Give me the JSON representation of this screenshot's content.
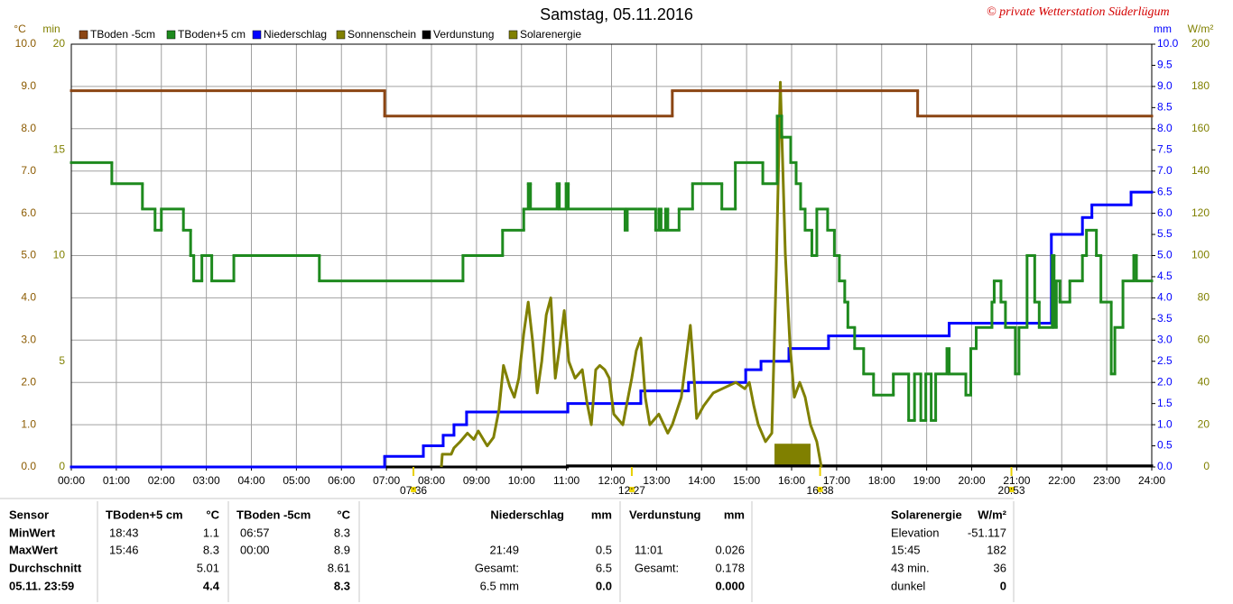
{
  "chart_data": {
    "type": "line",
    "title": "Samstag, 05.11.2016",
    "copyright": "© private Wetterstation Süderlügum",
    "grid": true,
    "xlim": [
      0,
      24
    ],
    "xticks": [
      {
        "value": 0,
        "label": "00:00"
      },
      {
        "value": 1,
        "label": "01:00"
      },
      {
        "value": 2,
        "label": "02:00"
      },
      {
        "value": 3,
        "label": "03:00"
      },
      {
        "value": 4,
        "label": "04:00"
      },
      {
        "value": 5,
        "label": "05:00"
      },
      {
        "value": 6,
        "label": "06:00"
      },
      {
        "value": 7,
        "label": "07:00"
      },
      {
        "value": 8,
        "label": "08:00"
      },
      {
        "value": 9,
        "label": "09:00"
      },
      {
        "value": 10,
        "label": "10:00"
      },
      {
        "value": 11,
        "label": "11:00"
      },
      {
        "value": 12,
        "label": "12:00"
      },
      {
        "value": 13,
        "label": "13:00"
      },
      {
        "value": 14,
        "label": "14:00"
      },
      {
        "value": 15,
        "label": "15:00"
      },
      {
        "value": 16,
        "label": "16:00"
      },
      {
        "value": 17,
        "label": "17:00"
      },
      {
        "value": 18,
        "label": "18:00"
      },
      {
        "value": 19,
        "label": "19:00"
      },
      {
        "value": 20,
        "label": "20:00"
      },
      {
        "value": 21,
        "label": "21:00"
      },
      {
        "value": 22,
        "label": "22:00"
      },
      {
        "value": 23,
        "label": "23:00"
      },
      {
        "value": 24,
        "label": "24:00"
      }
    ],
    "y_unit": "°C",
    "ylim": [
      0,
      10
    ],
    "yticks": [
      {
        "value": 0,
        "label": "0.0"
      },
      {
        "value": 1,
        "label": "1.0"
      },
      {
        "value": 2,
        "label": "2.0"
      },
      {
        "value": 3,
        "label": "3.0"
      },
      {
        "value": 4,
        "label": "4.0"
      },
      {
        "value": 5,
        "label": "5.0"
      },
      {
        "value": 6,
        "label": "6.0"
      },
      {
        "value": 7,
        "label": "7.0"
      },
      {
        "value": 8,
        "label": "8.0"
      },
      {
        "value": 9,
        "label": "9.0"
      },
      {
        "value": 10,
        "label": "10.0"
      }
    ],
    "y3_unit": "min",
    "y3lim": [
      0,
      20
    ],
    "y3ticks": [
      0,
      5,
      10,
      15,
      20
    ],
    "y2_unit": "mm",
    "y2lim": [
      0,
      10
    ],
    "y2ticks": [
      {
        "value": 0,
        "label": "0.0"
      },
      {
        "value": 0.5,
        "label": "0.5"
      },
      {
        "value": 1,
        "label": "1.0"
      },
      {
        "value": 1.5,
        "label": "1.5"
      },
      {
        "value": 2,
        "label": "2.0"
      },
      {
        "value": 2.5,
        "label": "2.5"
      },
      {
        "value": 3,
        "label": "3.0"
      },
      {
        "value": 3.5,
        "label": "3.5"
      },
      {
        "value": 4,
        "label": "4.0"
      },
      {
        "value": 4.5,
        "label": "4.5"
      },
      {
        "value": 5,
        "label": "5.0"
      },
      {
        "value": 5.5,
        "label": "5.5"
      },
      {
        "value": 6,
        "label": "6.0"
      },
      {
        "value": 6.5,
        "label": "6.5"
      },
      {
        "value": 7,
        "label": "7.0"
      },
      {
        "value": 7.5,
        "label": "7.5"
      },
      {
        "value": 8,
        "label": "8.0"
      },
      {
        "value": 8.5,
        "label": "8.5"
      },
      {
        "value": 9,
        "label": "9.0"
      },
      {
        "value": 9.5,
        "label": "9.5"
      },
      {
        "value": 10,
        "label": "10.0"
      }
    ],
    "y4_unit": "W/m²",
    "y4lim": [
      0,
      200
    ],
    "y4ticks": [
      0,
      20,
      40,
      60,
      80,
      100,
      120,
      140,
      160,
      180,
      200
    ],
    "series": [
      {
        "name": "TBoden -5cm",
        "color": "#8b4513",
        "type": "step",
        "axis": "y",
        "x": [
          0,
          6.96,
          13.35,
          18.8
        ],
        "values": [
          8.9,
          8.3,
          8.9,
          8.3
        ]
      },
      {
        "name": "TBoden+5 cm",
        "color": "#1e8a1e",
        "type": "step",
        "axis": "y",
        "x": [
          0,
          0.9,
          1.58,
          1.86,
          2.0,
          2.49,
          2.65,
          2.72,
          2.9,
          3.12,
          3.61,
          5.51,
          8.7,
          9.58,
          10.05,
          10.15,
          10.2,
          10.79,
          10.84,
          10.99,
          11.04,
          12.3,
          12.35,
          12.98,
          13.05,
          13.1,
          13.2,
          13.25,
          13.5,
          13.8,
          14.45,
          14.75,
          15.36,
          15.68,
          15.78,
          15.98,
          16.1,
          16.2,
          16.3,
          16.45,
          16.56,
          16.8,
          16.95,
          17.06,
          17.18,
          17.25,
          17.4,
          17.6,
          17.82,
          18.26,
          18.6,
          18.73,
          18.87,
          18.98,
          19.1,
          19.2,
          19.45,
          19.5,
          19.87,
          19.98,
          20.1,
          20.45,
          20.5,
          20.65,
          20.75,
          20.97,
          21.05,
          21.23,
          21.4,
          21.5,
          21.79,
          21.83,
          21.88,
          21.96,
          22.18,
          22.46,
          22.55,
          22.77,
          22.87,
          23.1,
          23.18,
          23.36,
          23.6,
          23.66
        ],
        "values": [
          7.2,
          6.7,
          6.1,
          5.6,
          6.1,
          5.6,
          5.0,
          4.4,
          5.0,
          4.4,
          5.0,
          4.4,
          5.0,
          5.6,
          6.1,
          6.7,
          6.1,
          6.7,
          6.1,
          6.7,
          6.1,
          5.6,
          6.1,
          5.6,
          6.1,
          5.6,
          6.1,
          5.6,
          6.1,
          6.7,
          6.1,
          7.2,
          6.7,
          8.3,
          7.8,
          7.2,
          6.7,
          6.1,
          5.6,
          5.0,
          6.1,
          5.6,
          5.0,
          4.4,
          3.9,
          3.3,
          2.8,
          2.2,
          1.7,
          2.2,
          1.1,
          2.2,
          1.1,
          2.2,
          1.1,
          2.2,
          2.8,
          2.2,
          1.7,
          2.8,
          3.3,
          3.9,
          4.4,
          3.9,
          3.3,
          2.2,
          3.3,
          5.0,
          3.9,
          3.3,
          5.0,
          3.3,
          4.4,
          3.9,
          4.4,
          5.0,
          5.6,
          5.0,
          3.9,
          2.2,
          3.3,
          4.4,
          5.0,
          4.4
        ]
      },
      {
        "name": "Niederschlag",
        "color": "#0000ff",
        "type": "step",
        "axis": "y2",
        "x": [
          0,
          6.96,
          7.82,
          8.26,
          8.5,
          8.78,
          11.03,
          12.65,
          13.71,
          14.98,
          15.32,
          15.94,
          16.82,
          19.5,
          21.77,
          22.46,
          22.67,
          23.54
        ],
        "values": [
          0,
          0.25,
          0.5,
          0.75,
          1.0,
          1.3,
          1.5,
          1.8,
          2.0,
          2.3,
          2.5,
          2.8,
          3.1,
          3.4,
          5.5,
          5.9,
          6.2,
          6.5
        ]
      },
      {
        "name": "Sonnenschein",
        "color": "#808000",
        "type": "bar",
        "axis": "y3",
        "bins": [
          15.62,
          16.42
        ],
        "values": [
          1.1
        ]
      },
      {
        "name": "Verdunstung",
        "color": "#000000",
        "type": "step",
        "axis": "y2",
        "x": [
          0,
          11.02
        ],
        "values": [
          0,
          0.026
        ]
      },
      {
        "name": "Solarenergie",
        "color": "#808000",
        "type": "line",
        "axis": "y4",
        "x": [
          8.22,
          8.24,
          8.44,
          8.5,
          8.64,
          8.8,
          8.94,
          9.04,
          9.24,
          9.38,
          9.5,
          9.6,
          9.74,
          9.84,
          9.94,
          10.05,
          10.15,
          10.25,
          10.35,
          10.45,
          10.55,
          10.65,
          10.75,
          10.85,
          10.95,
          11.05,
          11.19,
          11.35,
          11.45,
          11.55,
          11.65,
          11.74,
          11.85,
          11.95,
          12.05,
          12.25,
          12.45,
          12.55,
          12.65,
          12.75,
          12.85,
          13.05,
          13.25,
          13.35,
          13.55,
          13.65,
          13.75,
          13.81,
          13.89,
          14.05,
          14.26,
          14.46,
          14.76,
          14.96,
          15.06,
          15.16,
          15.26,
          15.42,
          15.56,
          15.66,
          15.75,
          15.86,
          15.96,
          16.06,
          16.18,
          16.3,
          16.42,
          16.56,
          16.66
        ],
        "values": [
          0,
          6,
          6,
          9,
          12,
          16,
          13,
          17,
          10,
          14,
          27,
          48,
          38,
          33,
          42,
          63,
          78,
          59,
          35,
          50,
          72,
          80,
          42,
          57,
          74,
          50,
          42,
          46,
          31,
          20,
          46,
          48,
          46,
          42,
          25,
          20,
          42,
          55,
          61,
          33,
          20,
          25,
          16,
          20,
          33,
          50,
          67,
          50,
          23,
          29,
          35,
          37,
          40,
          37,
          40,
          29,
          20,
          12,
          16,
          93,
          182,
          101,
          59,
          33,
          40,
          33,
          20,
          12,
          0
        ]
      }
    ],
    "annotations": [
      {
        "x": 7.6,
        "label": "07:36"
      },
      {
        "x": 12.45,
        "label": "12:27"
      },
      {
        "x": 16.633,
        "label": "16:38"
      },
      {
        "x": 20.883,
        "label": "20:53"
      }
    ]
  },
  "table": {
    "row_labels": [
      "Sensor",
      "MinWert",
      "MaxWert",
      "Durchschnitt",
      "05.11. 23:59"
    ],
    "panels": [
      {
        "name": "TBoden+5 cm",
        "unit": "°C",
        "rows": [
          {
            "time": "18:43",
            "value": "1.1"
          },
          {
            "time": "15:46",
            "value": "8.3"
          },
          {
            "value": "5.01"
          },
          {
            "value": "4.4"
          }
        ]
      },
      {
        "name": "TBoden -5cm",
        "unit": "°C",
        "rows": [
          {
            "time": "06:57",
            "value": "8.3"
          },
          {
            "time": "00:00",
            "value": "8.9"
          },
          {
            "value": "8.61"
          },
          {
            "value": "8.3"
          }
        ]
      },
      {
        "name": "Niederschlag",
        "unit": "mm",
        "rows": [
          null,
          {
            "time": "21:49",
            "value": "0.5"
          },
          {
            "time": "Gesamt:",
            "value": "6.5"
          },
          {
            "time": "6.5 mm",
            "value": "0.0"
          }
        ]
      },
      {
        "name": "Verdunstung",
        "unit": "mm",
        "rows": [
          null,
          {
            "time": "11:01",
            "value": "0.026"
          },
          {
            "time": "Gesamt:",
            "value": "0.178"
          },
          {
            "value": "0.000"
          }
        ]
      },
      {
        "name": "Solarenergie",
        "unit": "W/m²",
        "rows": [
          {
            "time": "Elevation",
            "value": "-51.117"
          },
          {
            "time": "15:45",
            "value": "182"
          },
          {
            "time": "43 min.",
            "value": "36"
          },
          {
            "time": "dunkel",
            "value": "0"
          }
        ]
      }
    ]
  }
}
